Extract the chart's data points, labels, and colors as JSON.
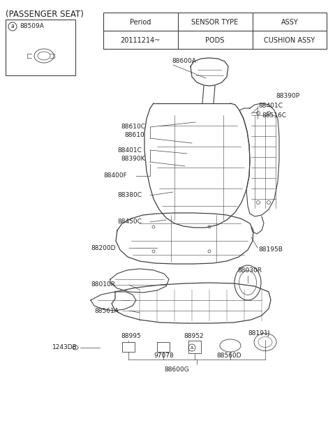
{
  "title": "(PASSENGER SEAT)",
  "bg_color": "#ffffff",
  "table_headers": [
    "Period",
    "SENSOR TYPE",
    "ASSY"
  ],
  "table_row": [
    "20111214~",
    "PODS",
    "CUSHION ASSY"
  ],
  "inset_label": "88509A",
  "line_color": "#404040",
  "text_color": "#202020",
  "font_size_labels": 6.5,
  "font_size_title": 8.5,
  "font_size_table_h": 7.0,
  "font_size_table_d": 7.0
}
